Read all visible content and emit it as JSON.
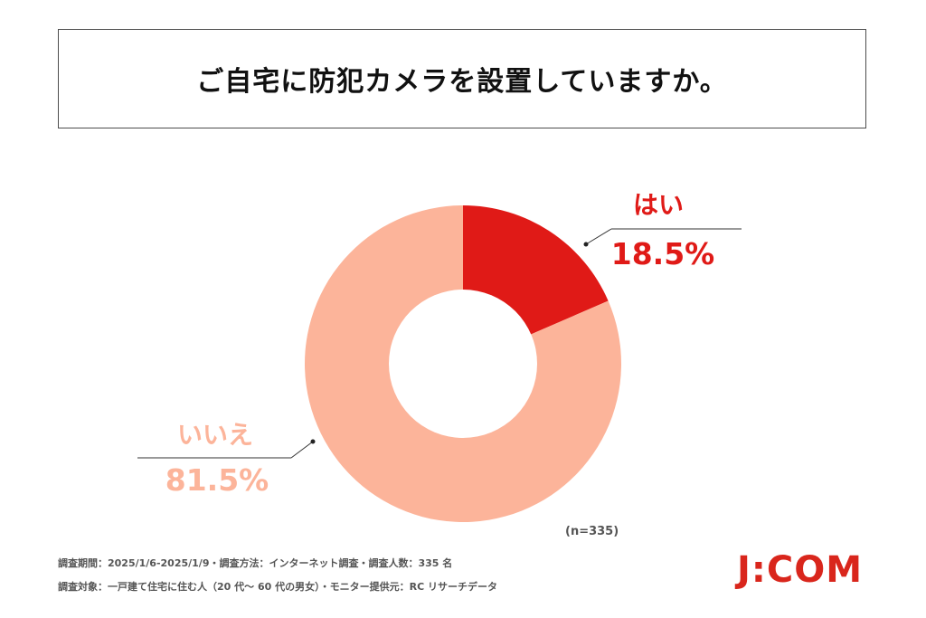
{
  "title": "ご自宅に防犯カメラを設置していますか。",
  "chart_data": {
    "type": "pie",
    "donut": true,
    "slices": [
      {
        "label": "はい",
        "value": 18.5,
        "display": "18.5%",
        "color": "#e01a17"
      },
      {
        "label": "いいえ",
        "value": 81.5,
        "display": "81.5%",
        "color": "#fcb49a"
      }
    ]
  },
  "sample_size": "(n=335)",
  "footnotes": {
    "line1": "調査期間：2025/1/6-2025/1/9・調査方法：インターネット調査・調査人数：335 名",
    "line2": "調査対象：一戸建て住宅に住む人（20 代～ 60 代の男女）・モニター提供元：RC リサーチデータ"
  },
  "logo": "J:COM"
}
